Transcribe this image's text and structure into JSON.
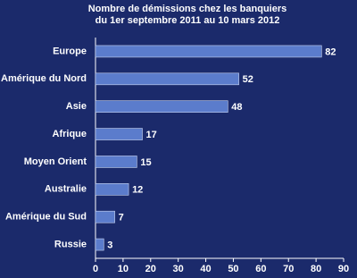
{
  "chart_data": {
    "type": "bar",
    "orientation": "horizontal",
    "title": [
      "Nombre de démissions chez les banquiers",
      "du  1er septembre 2011  au  10 mars 2012"
    ],
    "categories": [
      "Europe",
      "Amérique du Nord",
      "Asie",
      "Afrique",
      "Moyen Orient",
      "Australie",
      "Amérique du Sud",
      "Russie"
    ],
    "values": [
      82,
      52,
      48,
      17,
      15,
      12,
      7,
      3
    ],
    "color": "#5b7ccc",
    "xlim": [
      0,
      90
    ],
    "xticks": [
      0,
      10,
      20,
      30,
      40,
      50,
      60,
      70,
      80,
      90
    ]
  }
}
